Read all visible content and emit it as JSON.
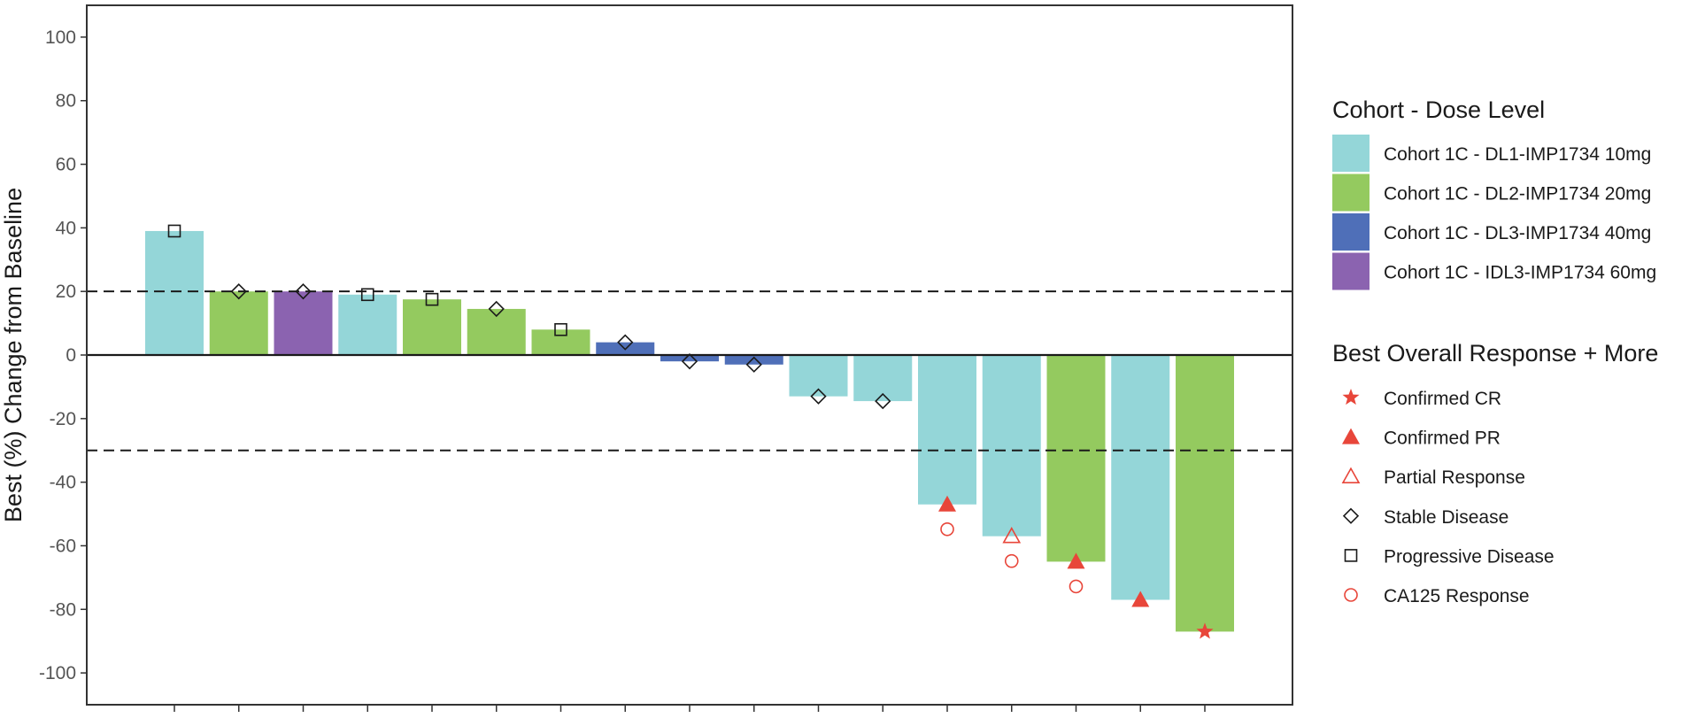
{
  "chart_data": {
    "type": "bar",
    "ylabel": "Best (%) Change from Baseline",
    "xlabel": "",
    "ylim": [
      -110,
      110
    ],
    "yticks": [
      100,
      80,
      60,
      40,
      20,
      0,
      -20,
      -40,
      -60,
      -80,
      -100
    ],
    "reference_lines": [
      20,
      -30
    ],
    "cohort_legend": {
      "title": "Cohort - Dose Level",
      "entries": [
        {
          "key": "DL1",
          "label": "Cohort 1C - DL1-IMP1734 10mg",
          "color": "#94d6d8"
        },
        {
          "key": "DL2",
          "label": "Cohort 1C - DL2-IMP1734 20mg",
          "color": "#94ca5f"
        },
        {
          "key": "DL3",
          "label": "Cohort 1C - DL3-IMP1734 40mg",
          "color": "#4f6fb8"
        },
        {
          "key": "IDL3",
          "label": "Cohort 1C - IDL3-IMP1734 60mg",
          "color": "#8b63b0"
        }
      ]
    },
    "response_legend": {
      "title": "Best Overall Response + More",
      "entries": [
        {
          "key": "CR",
          "label": "Confirmed CR",
          "icon": "star-icon",
          "color": "#e8463a"
        },
        {
          "key": "PR",
          "label": "Confirmed PR",
          "icon": "filled-triangle-icon",
          "color": "#e8463a"
        },
        {
          "key": "uPR",
          "label": "Partial Response",
          "icon": "open-triangle-icon",
          "color": "#e8463a"
        },
        {
          "key": "SD",
          "label": "Stable Disease",
          "icon": "diamond-icon",
          "color": "#1a1a1a"
        },
        {
          "key": "PD",
          "label": "Progressive Disease",
          "icon": "square-icon",
          "color": "#1a1a1a"
        },
        {
          "key": "CA125",
          "label": "CA125 Response",
          "icon": "circle-icon",
          "color": "#e8463a"
        }
      ]
    },
    "bars": [
      {
        "value": 39,
        "cohort": "DL1",
        "response": "PD",
        "ca125": false
      },
      {
        "value": 20,
        "cohort": "DL2",
        "response": "SD",
        "ca125": false
      },
      {
        "value": 20,
        "cohort": "IDL3",
        "response": "SD",
        "ca125": false
      },
      {
        "value": 19,
        "cohort": "DL1",
        "response": "PD",
        "ca125": false
      },
      {
        "value": 17.5,
        "cohort": "DL2",
        "response": "PD",
        "ca125": false
      },
      {
        "value": 14.5,
        "cohort": "DL2",
        "response": "SD",
        "ca125": false
      },
      {
        "value": 8,
        "cohort": "DL2",
        "response": "PD",
        "ca125": false
      },
      {
        "value": 4,
        "cohort": "DL3",
        "response": "SD",
        "ca125": false
      },
      {
        "value": -2,
        "cohort": "DL3",
        "response": "SD",
        "ca125": false
      },
      {
        "value": -3,
        "cohort": "DL3",
        "response": "SD",
        "ca125": false
      },
      {
        "value": -13,
        "cohort": "DL1",
        "response": "SD",
        "ca125": false
      },
      {
        "value": -14.5,
        "cohort": "DL1",
        "response": "SD",
        "ca125": false
      },
      {
        "value": -47,
        "cohort": "DL1",
        "response": "PR",
        "ca125": true
      },
      {
        "value": -57,
        "cohort": "DL1",
        "response": "uPR",
        "ca125": true
      },
      {
        "value": -65,
        "cohort": "DL2",
        "response": "PR",
        "ca125": true
      },
      {
        "value": -77,
        "cohort": "DL1",
        "response": "PR",
        "ca125": false
      },
      {
        "value": -87,
        "cohort": "DL2",
        "response": "CR",
        "ca125": false
      }
    ]
  }
}
